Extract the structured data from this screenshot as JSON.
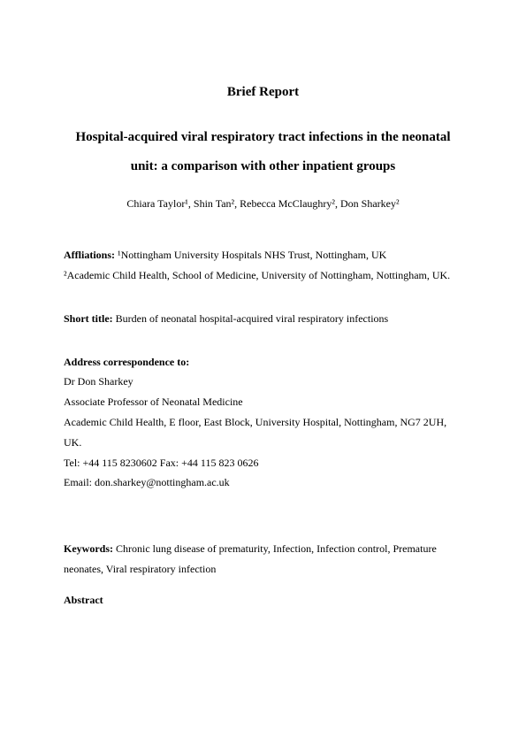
{
  "report_label": "Brief Report",
  "title": "Hospital-acquired viral respiratory tract infections in the neonatal unit: a comparison with other inpatient groups",
  "authors_html": "Chiara Taylor¹, Shin Tan², Rebecca McClaughry², Don Sharkey²",
  "affiliations": {
    "label": "Affliations:",
    "a1": "¹Nottingham University Hospitals NHS Trust, Nottingham, UK",
    "a2": "²Academic Child Health, School of Medicine, University of Nottingham, Nottingham, UK."
  },
  "short_title": {
    "label": "Short title:",
    "text": "Burden of neonatal hospital-acquired viral respiratory infections"
  },
  "correspondence": {
    "label": "Address correspondence to:",
    "name": "Dr Don Sharkey",
    "role": "Associate Professor of Neonatal Medicine",
    "address": "Academic Child Health, E floor, East Block, University Hospital, Nottingham, NG7 2UH, UK.",
    "tel_fax": "Tel: +44 115 8230602 Fax: +44 115 823 0626",
    "email_label": "Email:",
    "email": "don.sharkey@nottingham.ac.uk"
  },
  "keywords": {
    "label": "Keywords:",
    "text": "Chronic lung disease of prematurity, Infection, Infection control, Premature neonates, Viral respiratory infection"
  },
  "abstract_label": "Abstract"
}
